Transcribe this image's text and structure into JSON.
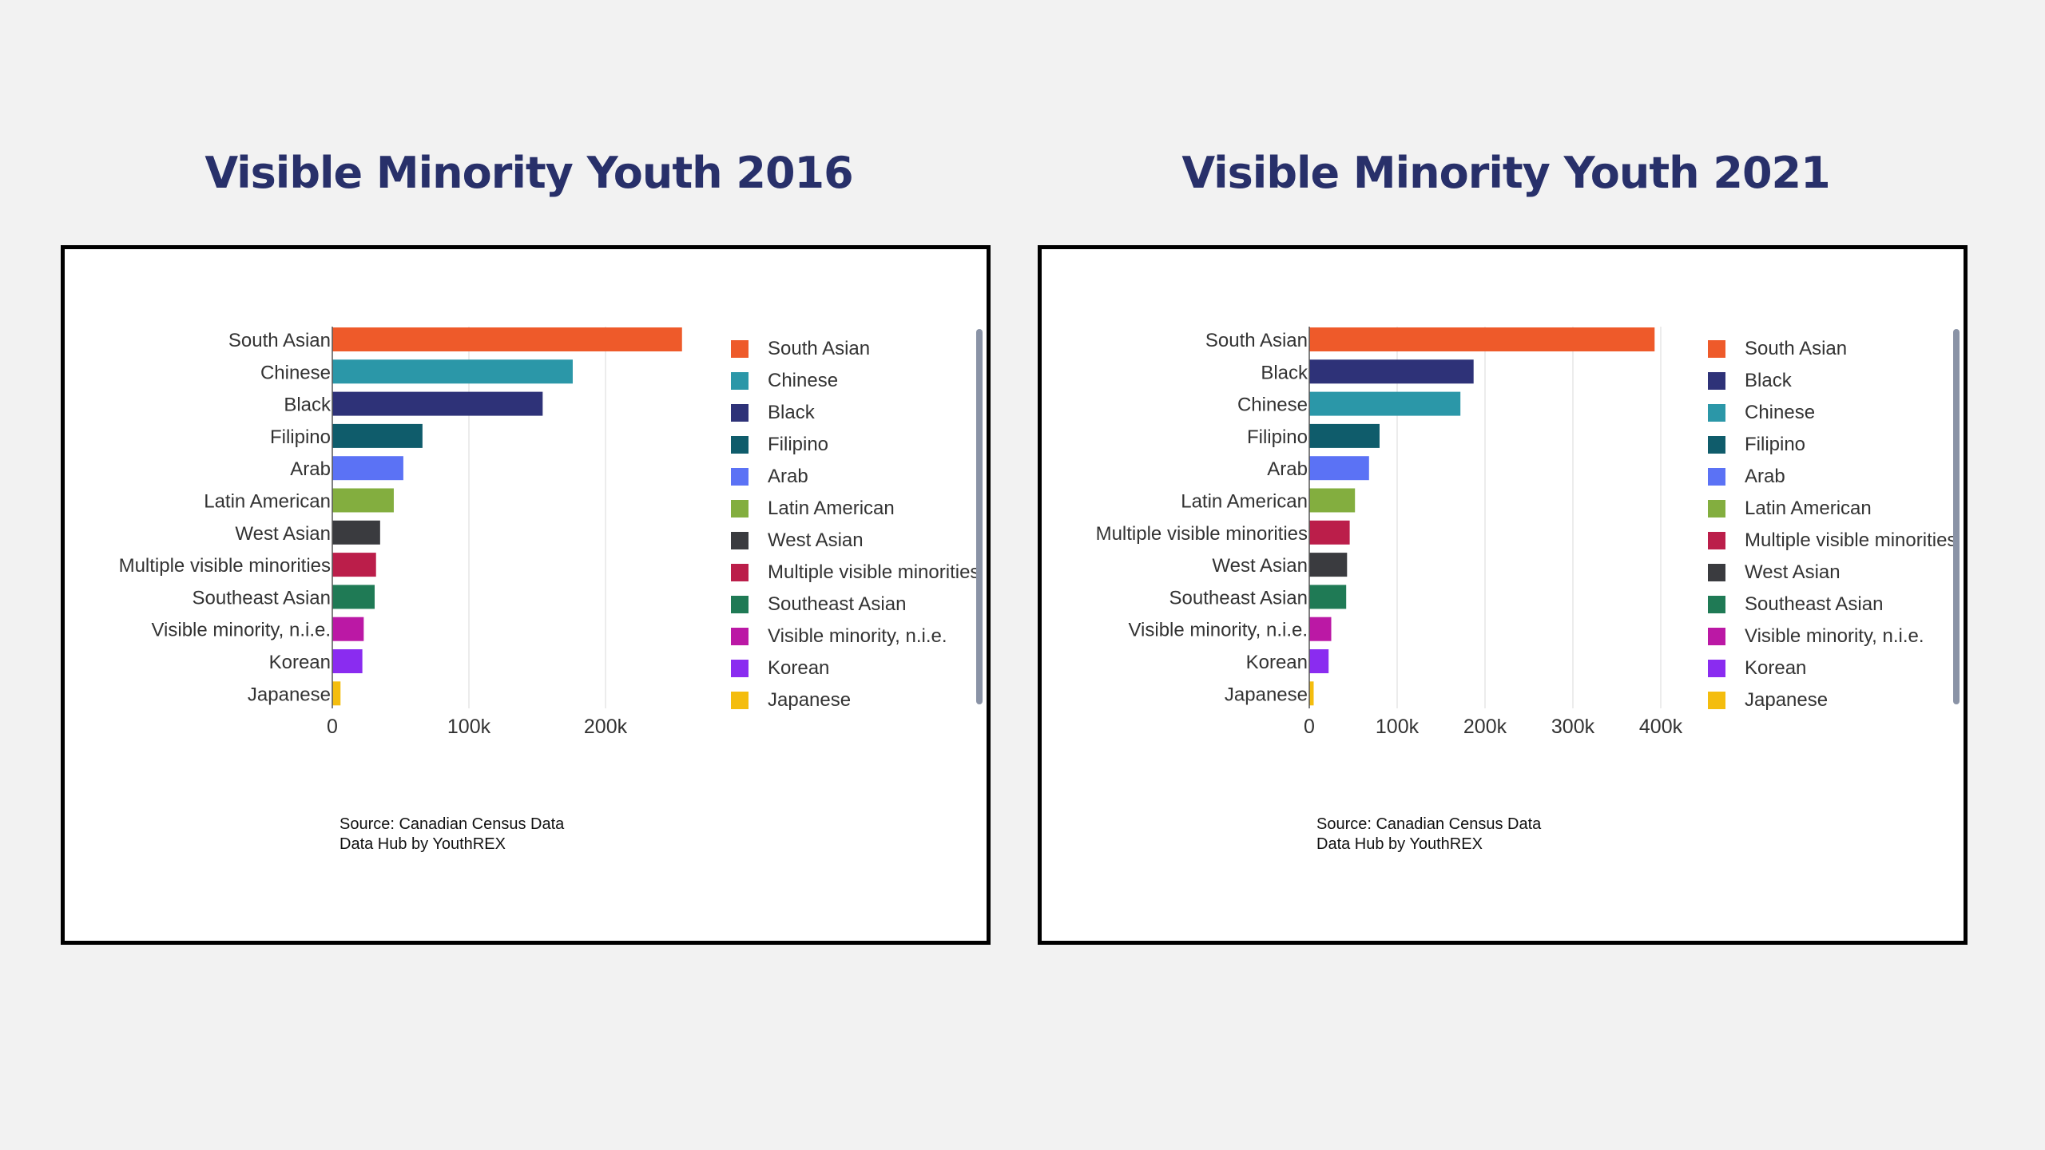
{
  "charts": [
    {
      "title": "Visible Minority Youth 2016",
      "source_line1": "Source: Canadian Census Data",
      "source_line2": "Data Hub by YouthREX"
    },
    {
      "title": "Visible Minority Youth 2021",
      "source_line1": "Source: Canadian Census Data",
      "source_line2": "Data Hub by YouthREX"
    }
  ],
  "chart_data": [
    {
      "type": "bar",
      "orientation": "horizontal",
      "title": "Visible Minority Youth 2016",
      "categories": [
        "South Asian",
        "Chinese",
        "Black",
        "Filipino",
        "Arab",
        "Latin American",
        "West Asian",
        "Multiple visible minorities",
        "Southeast Asian",
        "Visible minority, n.i.e.",
        "Korean",
        "Japanese"
      ],
      "values": [
        256000,
        176000,
        154000,
        66000,
        52000,
        45000,
        35000,
        32000,
        31000,
        23000,
        22000,
        6000
      ],
      "colors": [
        "#ee5a2a",
        "#2b97a8",
        "#2e3278",
        "#0f5c6b",
        "#5b72f5",
        "#83ae3f",
        "#3a3b3f",
        "#bb1e4a",
        "#1f7a55",
        "#bb18a5",
        "#8a2cf0",
        "#f4bd0e"
      ],
      "xlim": [
        0,
        300000
      ],
      "xticks": [
        0,
        100000,
        200000
      ],
      "xtick_labels": [
        "0",
        "100k",
        "200k"
      ],
      "xlabel": "",
      "ylabel": "",
      "grid": "vertical",
      "legend_position": "right"
    },
    {
      "type": "bar",
      "orientation": "horizontal",
      "title": "Visible Minority Youth 2021",
      "categories": [
        "South Asian",
        "Black",
        "Chinese",
        "Filipino",
        "Arab",
        "Latin American",
        "Multiple visible minorities",
        "West Asian",
        "Southeast Asian",
        "Visible minority, n.i.e.",
        "Korean",
        "Japanese"
      ],
      "values": [
        393000,
        187000,
        172000,
        80000,
        68000,
        52000,
        46000,
        43000,
        42000,
        25000,
        22000,
        5000
      ],
      "colors": [
        "#ee5a2a",
        "#2e3278",
        "#2b97a8",
        "#0f5c6b",
        "#5b72f5",
        "#83ae3f",
        "#bb1e4a",
        "#3a3b3f",
        "#1f7a55",
        "#bb18a5",
        "#8a2cf0",
        "#f4bd0e"
      ],
      "xlim": [
        0,
        430000
      ],
      "xticks": [
        0,
        100000,
        200000,
        300000,
        400000
      ],
      "xtick_labels": [
        "0",
        "100k",
        "200k",
        "300k",
        "400k"
      ],
      "xlabel": "",
      "ylabel": "",
      "grid": "vertical",
      "legend_position": "right"
    }
  ]
}
